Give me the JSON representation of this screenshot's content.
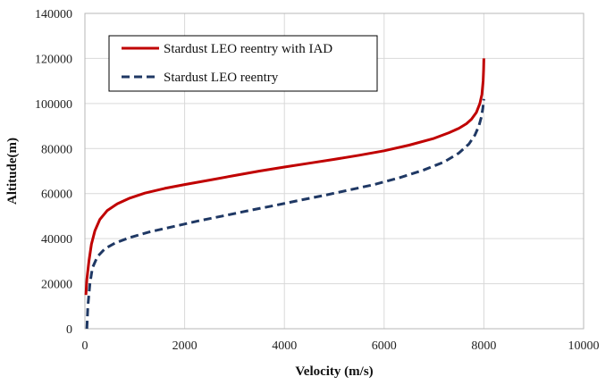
{
  "chart_data": {
    "type": "line",
    "title": "",
    "xlabel": "Velocity (m/s)",
    "ylabel": "Altitude(m)",
    "xlim": [
      0,
      10000
    ],
    "ylim": [
      0,
      140000
    ],
    "xticks": [
      0,
      2000,
      4000,
      6000,
      8000,
      10000
    ],
    "yticks": [
      0,
      20000,
      40000,
      60000,
      80000,
      100000,
      120000,
      140000
    ],
    "grid": true,
    "legend_position": "top-left",
    "series": [
      {
        "name": "Stardust LEO reentry with IAD",
        "color": "#c00000",
        "style": "solid",
        "x": [
          20,
          40,
          80,
          130,
          200,
          300,
          450,
          650,
          900,
          1200,
          1600,
          2000,
          2500,
          3000,
          3500,
          4000,
          4500,
          5000,
          5500,
          6000,
          6500,
          7000,
          7300,
          7500,
          7650,
          7750,
          7850,
          7920,
          7960,
          7985,
          7995,
          8000
        ],
        "y": [
          15000,
          22000,
          30000,
          37500,
          43500,
          48500,
          52500,
          55500,
          58000,
          60200,
          62300,
          64000,
          66000,
          68000,
          70000,
          71800,
          73500,
          75200,
          77000,
          79000,
          81500,
          84500,
          87000,
          89000,
          91000,
          93000,
          96000,
          100000,
          104000,
          110000,
          115000,
          120000
        ]
      },
      {
        "name": "Stardust LEO reentry",
        "color": "#1f3864",
        "style": "dashed",
        "x": [
          40,
          60,
          100,
          150,
          250,
          400,
          600,
          900,
          1300,
          1800,
          2300,
          2800,
          3300,
          3800,
          4300,
          4800,
          5300,
          5800,
          6300,
          6800,
          7200,
          7500,
          7700,
          7820,
          7900,
          7950,
          7980,
          8000
        ],
        "y": [
          0,
          10000,
          20000,
          27000,
          32000,
          35500,
          38000,
          40500,
          43000,
          45500,
          48000,
          50200,
          52500,
          54700,
          57000,
          59200,
          61600,
          64000,
          67000,
          70500,
          74000,
          78000,
          82000,
          86000,
          90000,
          94000,
          98000,
          102000
        ]
      }
    ]
  }
}
